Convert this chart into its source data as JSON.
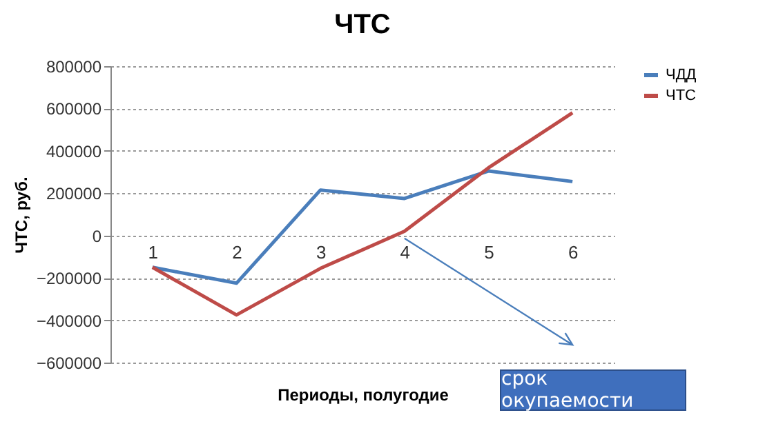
{
  "chart_data": {
    "type": "line",
    "title": "ЧТС",
    "xlabel": "Периоды, полугодие",
    "ylabel": "ЧТС, руб.",
    "categories": [
      "1",
      "2",
      "3",
      "4",
      "5",
      "6"
    ],
    "series": [
      {
        "name": "ЧДД",
        "color": "#4a7ebb",
        "values": [
          -150000,
          -225000,
          215000,
          175000,
          305000,
          255000
        ]
      },
      {
        "name": "ЧТС",
        "color": "#be4b48",
        "values": [
          -150000,
          -375000,
          -155000,
          20000,
          320000,
          580000
        ]
      }
    ],
    "ylim": [
      -600000,
      800000
    ],
    "yticks": [
      -600000,
      -400000,
      -200000,
      0,
      200000,
      400000,
      600000,
      800000
    ],
    "grid": "y",
    "legend": "right",
    "marker": "none",
    "line_style": "solid",
    "annotations": [
      "срок окупаемости"
    ]
  }
}
